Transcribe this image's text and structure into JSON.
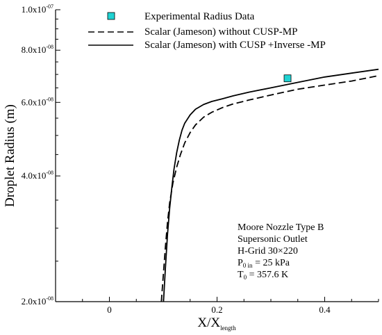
{
  "chart_data": {
    "type": "line",
    "xlabel": {
      "main": "X/X",
      "sub": "length"
    },
    "ylabel": "Droplet Radius (m)",
    "xlim": [
      -0.1,
      0.5
    ],
    "ylim": [
      2e-08,
      1e-07
    ],
    "y_scale": "log",
    "grid": false,
    "legend_position": "top",
    "x_ticks": [
      {
        "value": 0,
        "label": "0"
      },
      {
        "value": 0.2,
        "label": "0.2"
      },
      {
        "value": 0.4,
        "label": "0.4"
      }
    ],
    "y_ticks": [
      {
        "value": 2e-08,
        "label": "2.0x10",
        "exp": "-08"
      },
      {
        "value": 4e-08,
        "label": "4.0x10",
        "exp": "-08"
      },
      {
        "value": 6e-08,
        "label": "6.0x10",
        "exp": "-08"
      },
      {
        "value": 8e-08,
        "label": "8.0x10",
        "exp": "-08"
      },
      {
        "value": 1e-07,
        "label": "1.0x10",
        "exp": "-07"
      }
    ],
    "series": [
      {
        "name": "Experimental Radius Data",
        "kind": "marker",
        "color": "#1fd3d3",
        "x": [
          0.331
        ],
        "y": [
          6.85e-08
        ]
      },
      {
        "name": "Scalar (Jameson) without CUSP-MP",
        "kind": "line",
        "dash": "dashed",
        "color": "#000000",
        "x": [
          0.0965,
          0.1,
          0.104,
          0.108,
          0.112,
          0.118,
          0.125,
          0.132,
          0.14,
          0.15,
          0.16,
          0.175,
          0.19,
          0.21,
          0.23,
          0.26,
          0.3,
          0.35,
          0.4,
          0.45,
          0.5
        ],
        "y": [
          2e-08,
          2.3e-08,
          2.7e-08,
          3.1e-08,
          3.45e-08,
          3.85e-08,
          4.2e-08,
          4.5e-08,
          4.8e-08,
          5.08e-08,
          5.3e-08,
          5.53e-08,
          5.68e-08,
          5.83e-08,
          5.95e-08,
          6.08e-08,
          6.25e-08,
          6.45e-08,
          6.6e-08,
          6.75e-08,
          6.95e-08
        ]
      },
      {
        "name": "Scalar (Jameson) with CUSP +Inverse -MP",
        "kind": "line",
        "dash": "solid",
        "color": "#000000",
        "x": [
          0.1005,
          0.104,
          0.108,
          0.112,
          0.116,
          0.12,
          0.125,
          0.13,
          0.135,
          0.14,
          0.15,
          0.16,
          0.175,
          0.19,
          0.21,
          0.23,
          0.26,
          0.3,
          0.35,
          0.4,
          0.45,
          0.5
        ],
        "y": [
          2e-08,
          2.4e-08,
          2.9e-08,
          3.35e-08,
          3.75e-08,
          4.15e-08,
          4.55e-08,
          4.88e-08,
          5.15e-08,
          5.35e-08,
          5.6e-08,
          5.78e-08,
          5.93e-08,
          6.03e-08,
          6.12e-08,
          6.22e-08,
          6.35e-08,
          6.5e-08,
          6.7e-08,
          6.9e-08,
          7.05e-08,
          7.2e-08
        ]
      }
    ],
    "annotation": {
      "lines": [
        {
          "text": "Moore Nozzle Type B"
        },
        {
          "text": "Supersonic Outlet"
        },
        {
          "text": "H-Grid 30×220"
        },
        {
          "main": "P",
          "sub": "0 in",
          "rest": " = 25 kPa"
        },
        {
          "main": "T",
          "sub": "0",
          "rest": " = 357.6 K"
        }
      ]
    }
  }
}
